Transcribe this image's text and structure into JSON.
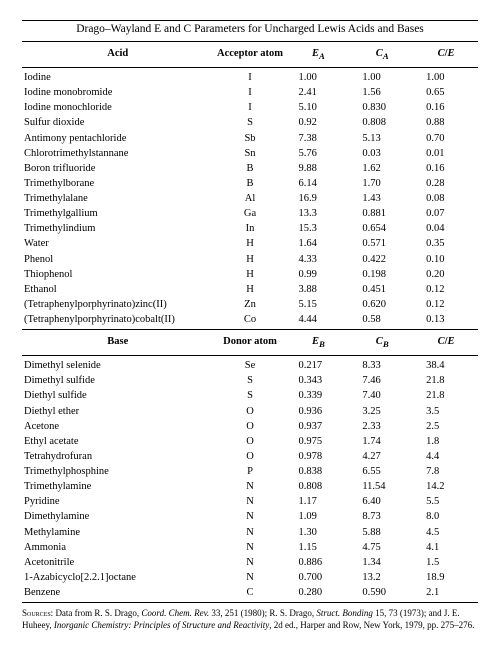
{
  "title": "Drago–Wayland E and C Parameters for Uncharged Lewis Acids and Bases",
  "section1": {
    "col1": "Acid",
    "col2": "Acceptor atom",
    "col3_html": "<span class=\"sub\">E<sub>A</sub></span>",
    "col4_html": "<span class=\"sub\">C<sub>A</sub></span>",
    "col5_html": "<span class=\"sub\">C</span>/<span class=\"sub\">E</span>"
  },
  "acids": [
    [
      "Iodine",
      "I",
      "1.00",
      "1.00",
      "1.00"
    ],
    [
      "Iodine monobromide",
      "I",
      "2.41",
      "1.56",
      "0.65"
    ],
    [
      "Iodine monochloride",
      "I",
      "5.10",
      "0.830",
      "0.16"
    ],
    [
      "Sulfur dioxide",
      "S",
      "0.92",
      "0.808",
      "0.88"
    ],
    [
      "Antimony pentachloride",
      "Sb",
      "7.38",
      "5.13",
      "0.70"
    ],
    [
      "Chlorotrimethylstannane",
      "Sn",
      "5.76",
      "0.03",
      "0.01"
    ],
    [
      "Boron trifluoride",
      "B",
      "9.88",
      "1.62",
      "0.16"
    ],
    [
      "Trimethylborane",
      "B",
      "6.14",
      "1.70",
      "0.28"
    ],
    [
      "Trimethylalane",
      "Al",
      "16.9",
      "1.43",
      "0.08"
    ],
    [
      "Trimethylgallium",
      "Ga",
      "13.3",
      "0.881",
      "0.07"
    ],
    [
      "Trimethylindium",
      "In",
      "15.3",
      "0.654",
      "0.04"
    ],
    [
      "Water",
      "H",
      "1.64",
      "0.571",
      "0.35"
    ],
    [
      "Phenol",
      "H",
      "4.33",
      "0.422",
      "0.10"
    ],
    [
      "Thiophenol",
      "H",
      "0.99",
      "0.198",
      "0.20"
    ],
    [
      "Ethanol",
      "H",
      "3.88",
      "0.451",
      "0.12"
    ],
    [
      "(Tetraphenylporphyrinato)zinc(II)",
      "Zn",
      "5.15",
      "0.620",
      "0.12"
    ],
    [
      "(Tetraphenylporphyrinato)cobalt(II)",
      "Co",
      "4.44",
      "0.58",
      "0.13"
    ]
  ],
  "section2": {
    "col1": "Base",
    "col2": "Donor atom",
    "col3_html": "<span class=\"sub\">E<sub>B</sub></span>",
    "col4_html": "<span class=\"sub\">C<sub>B</sub></span>",
    "col5_html": "<span class=\"sub\">C</span>/<span class=\"sub\">E</span>"
  },
  "bases": [
    [
      "Dimethyl selenide",
      "Se",
      "0.217",
      "8.33",
      "38.4"
    ],
    [
      "Dimethyl sulfide",
      "S",
      "0.343",
      "7.46",
      "21.8"
    ],
    [
      "Diethyl sulfide",
      "S",
      "0.339",
      "7.40",
      "21.8"
    ],
    [
      "Diethyl ether",
      "O",
      "0.936",
      "3.25",
      "3.5"
    ],
    [
      "Acetone",
      "O",
      "0.937",
      "2.33",
      "2.5"
    ],
    [
      "Ethyl acetate",
      "O",
      "0.975",
      "1.74",
      "1.8"
    ],
    [
      "Tetrahydrofuran",
      "O",
      "0.978",
      "4.27",
      "4.4"
    ],
    [
      "Trimethylphosphine",
      "P",
      "0.838",
      "6.55",
      "7.8"
    ],
    [
      "Trimethylamine",
      "N",
      "0.808",
      "11.54",
      "14.2"
    ],
    [
      "Pyridine",
      "N",
      "1.17",
      "6.40",
      "5.5"
    ],
    [
      "Dimethylamine",
      "N",
      "1.09",
      "8.73",
      "8.0"
    ],
    [
      "Methylamine",
      "N",
      "1.30",
      "5.88",
      "4.5"
    ],
    [
      "Ammonia",
      "N",
      "1.15",
      "4.75",
      "4.1"
    ],
    [
      "Acetonitrile",
      "N",
      "0.886",
      "1.34",
      "1.5"
    ],
    [
      "1-Azabicyclo[2.2.1]octane",
      "N",
      "0.700",
      "13.2",
      "18.9"
    ],
    [
      "Benzene",
      "C",
      "0.280",
      "0.590",
      "2.1"
    ]
  ],
  "sources_label": "Sources:",
  "sources_html": "Data from R. S. Drago, <i>Coord. Chem. Rev.</i> 33, 251 (1980); R. S. Drago, <i>Struct. Bonding</i> 15, 73 (1973); and J. E. Huheey, <i>Inorganic Chemistry: Principles of Structure and Reactivity</i>, 2d ed., Harper and Row, New York, 1979, pp. 275–276."
}
